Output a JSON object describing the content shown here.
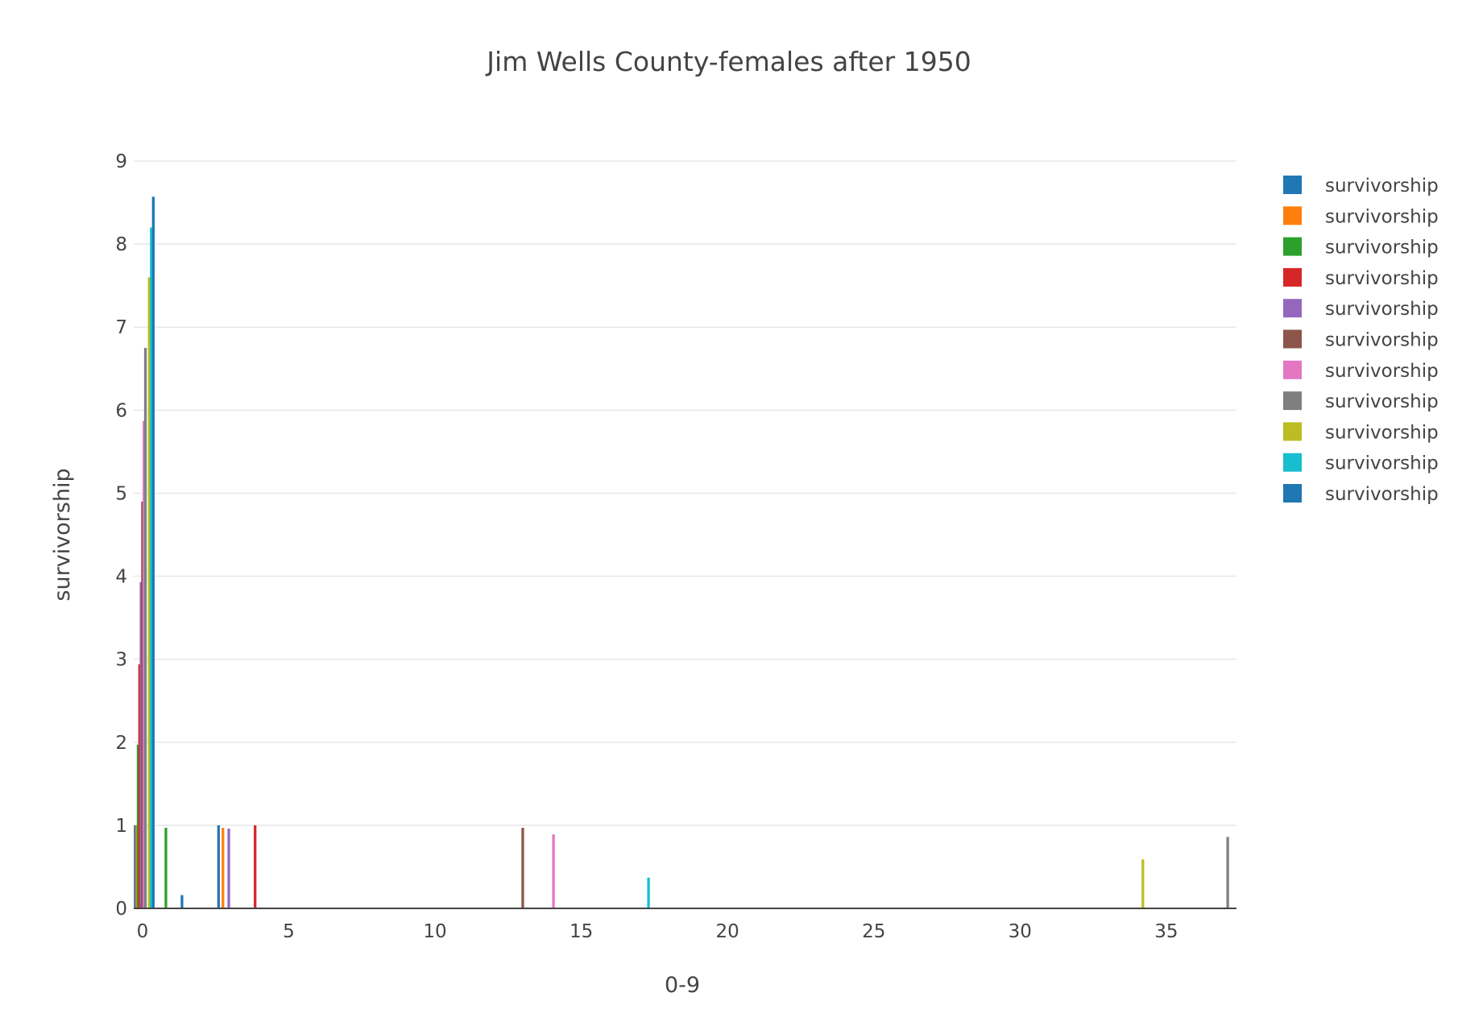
{
  "chart_data": {
    "type": "bar",
    "title": "Jim Wells County-females after 1950",
    "xlabel": "0-9",
    "ylabel": "survivorship",
    "xlim": [
      -0.3,
      37.4
    ],
    "ylim": [
      0,
      9
    ],
    "xticks": [
      0,
      5,
      10,
      15,
      20,
      25,
      30,
      35
    ],
    "yticks": [
      0,
      1,
      2,
      3,
      4,
      5,
      6,
      7,
      8,
      9
    ],
    "grid": true,
    "legend_position": "top-right",
    "bar_width": 0.09,
    "series": [
      {
        "name": "survivorship",
        "color": "#1f77b4",
        "x": [
          -0.25,
          1.35,
          2.6
        ],
        "values": [
          1.0,
          0.16,
          1.0
        ]
      },
      {
        "name": "survivorship",
        "color": "#ff7f0e",
        "x": [
          -0.2,
          2.75
        ],
        "values": [
          1.0,
          0.97
        ]
      },
      {
        "name": "survivorship",
        "color": "#2ca02c",
        "x": [
          -0.15,
          0.8
        ],
        "values": [
          1.97,
          0.97
        ]
      },
      {
        "name": "survivorship",
        "color": "#d62728",
        "x": [
          -0.1,
          3.85
        ],
        "values": [
          2.94,
          1.0
        ]
      },
      {
        "name": "survivorship",
        "color": "#9467bd",
        "x": [
          -0.05,
          2.95
        ],
        "values": [
          3.93,
          0.96
        ]
      },
      {
        "name": "survivorship",
        "color": "#8c564b",
        "x": [
          0.0,
          13.0
        ],
        "values": [
          4.9,
          0.97
        ]
      },
      {
        "name": "survivorship",
        "color": "#e377c2",
        "x": [
          0.05,
          14.05
        ],
        "values": [
          5.87,
          0.89
        ]
      },
      {
        "name": "survivorship",
        "color": "#7f7f7f",
        "x": [
          0.1,
          37.1
        ],
        "values": [
          6.75,
          0.86
        ]
      },
      {
        "name": "survivorship",
        "color": "#bcbd22",
        "x": [
          0.23,
          34.2
        ],
        "values": [
          7.6,
          0.59
        ]
      },
      {
        "name": "survivorship",
        "color": "#17becf",
        "x": [
          0.3,
          17.3
        ],
        "values": [
          8.2,
          0.37
        ]
      },
      {
        "name": "survivorship",
        "color": "#1f77b4",
        "x": [
          0.37
        ],
        "values": [
          8.57
        ]
      }
    ]
  }
}
